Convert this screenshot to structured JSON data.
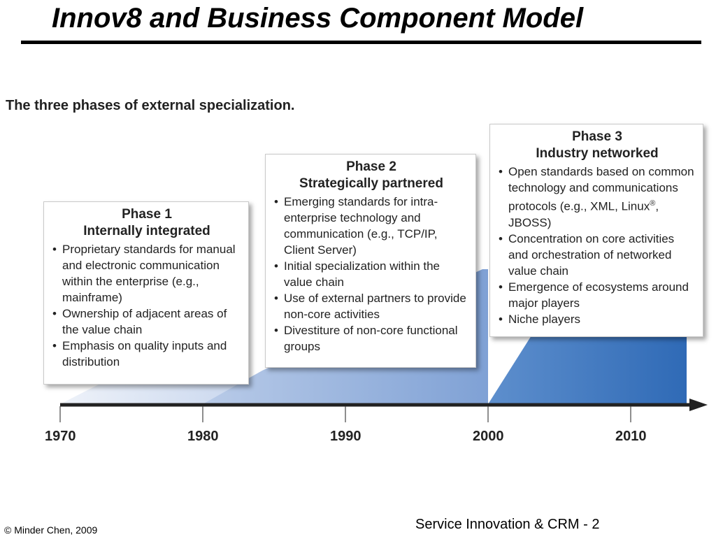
{
  "title": "Innov8 and Business Component Model",
  "subtitle": "The three phases of external specialization.",
  "phases": [
    {
      "name": "Phase 1",
      "label": "Internally integrated",
      "items": [
        "Proprietary standards for manual and electronic communication within the enterprise (e.g., mainframe)",
        "Ownership of adjacent areas of the value chain",
        "Emphasis on quality inputs and distribution"
      ]
    },
    {
      "name": "Phase 2",
      "label": "Strategically partnered",
      "items": [
        "Emerging standards for intra-enterprise technology and communication (e.g., TCP/IP, Client Server)",
        "Initial specialization within the value chain",
        "Use of external partners to provide non-core activities",
        "Divestiture of non-core functional groups"
      ]
    },
    {
      "name": "Phase 3",
      "label": "Industry networked",
      "items": [
        "Open standards based on common technology and communications protocols (e.g., XML, Linux",
        "Concentration on core activities and orchestration of networked value chain",
        "Emergence of ecosystems around major players",
        "Niche players"
      ],
      "linux_mark": "®",
      "linux_tail": ", JBOSS)"
    }
  ],
  "timeline": {
    "years": [
      "1970",
      "1980",
      "1990",
      "2000",
      "2010"
    ]
  },
  "footer": {
    "copyright": "© Minder Chen, 2009",
    "page": "Service Innovation & CRM - 2"
  },
  "colors": {
    "phase1_fill": "#dde6f3",
    "phase2_fill": "#9db6de",
    "phase3_fill": "#3e78c0",
    "axis": "#222222"
  }
}
